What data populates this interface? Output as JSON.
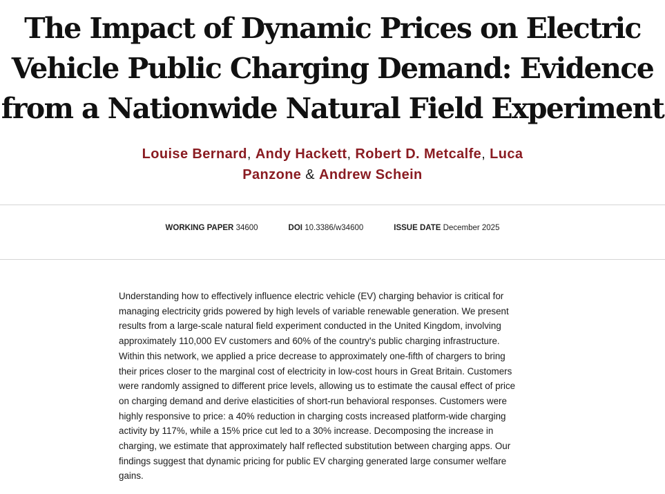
{
  "title": {
    "lines": [
      "The Impact of Dynamic Prices on Electric",
      "Vehicle Public Charging Demand: Evidence",
      "from a Nationwide Natural Field Experiment"
    ]
  },
  "authors": {
    "list": [
      "Louise Bernard",
      "Andy Hackett",
      "Robert D. Metcalfe",
      "Luca Panzone",
      "Andrew Schein"
    ],
    "line1": {
      "a1": "Louise Bernard",
      "sep1": ", ",
      "a2": "Andy Hackett",
      "sep2": ", ",
      "a3": "Robert D. Metcalfe",
      "sep3": ", ",
      "a4_part1": "Luca"
    },
    "line2": {
      "a4_part2": "Panzone",
      "sep4": " & ",
      "a5": "Andrew Schein"
    }
  },
  "meta": {
    "working_paper": {
      "label": "WORKING PAPER",
      "value": "34600"
    },
    "doi": {
      "label": "DOI",
      "value": "10.3386/w34600"
    },
    "issue_date": {
      "label": "ISSUE DATE",
      "value": "December 2025"
    }
  },
  "abstract": {
    "lines": [
      "Understanding how to effectively influence electric vehicle (EV) charging behavior is critical for",
      "managing electricity grids powered by high levels of variable renewable generation. We present",
      "results from a large-scale natural field experiment conducted in the United Kingdom, involving",
      "approximately 110,000 EV customers and 60% of the country's public charging infrastructure.",
      "Within this network, we applied a price decrease to approximately one-fifth of chargers to bring",
      "their prices closer to the marginal cost of electricity in low-cost hours in Great Britain. Customers",
      "were randomly assigned to different price levels, allowing us to estimate the causal effect of price",
      "on charging demand and derive elasticities of short-run behavioral responses. Customers were",
      "highly responsive to price: a 40% reduction in charging costs increased platform-wide charging",
      "activity by 117%, while a 15% price cut led to a 30% increase. Decomposing the increase in",
      "charging, we estimate that approximately half reflected substitution between charging apps. Our",
      "findings suggest that dynamic pricing for public EV charging generated large consumer welfare",
      "gains."
    ]
  },
  "colors": {
    "author_link": "#8a1c22",
    "text": "#1a1a1a",
    "rule": "#d4d4d4"
  }
}
